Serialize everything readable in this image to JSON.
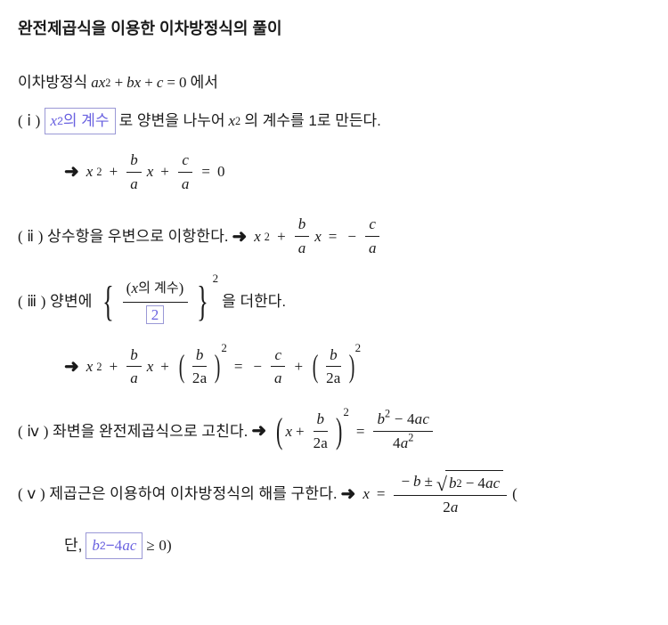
{
  "colors": {
    "text": "#1a1a1a",
    "box_border": "#9a98d6",
    "box_text": "#6a62e0",
    "background": "#ffffff"
  },
  "title": "완전제곱식을 이용한 이차방정식의 풀이",
  "intro": {
    "prefix": "이차방정식 ",
    "suffix": "에서",
    "ax2": "ax",
    "sq": "2",
    "plus1": " + ",
    "bx": "bx",
    "plus2": " + ",
    "c": "c",
    "eq": " = ",
    "zero": "0"
  },
  "step1": {
    "label": "( ⅰ ) ",
    "box_x": "x",
    "box_sq": "2",
    "box_rest": "의 계수",
    "mid": " 로 양변을 나누어 ",
    "x": "x",
    "sq": "2",
    "tail": "의 계수를 1로 만든다."
  },
  "eq1": {
    "x2_x": "x",
    "x2_sq": "2",
    "plus1": "+",
    "frac1_top": "b",
    "frac1_bot": "a",
    "frac1_after": "x",
    "plus2": "+",
    "frac2_top": "c",
    "frac2_bot": "a",
    "eq": "=",
    "zero": "0"
  },
  "step2": {
    "label": "( ⅱ ) 상수항을 우변으로 이항한다. ",
    "x2_x": "x",
    "x2_sq": "2",
    "plus": "+",
    "frac1_top": "b",
    "frac1_bot": "a",
    "frac1_after": "x",
    "eq": "=",
    "minus": "−",
    "frac2_top": "c",
    "frac2_bot": "a"
  },
  "step3": {
    "label": "( ⅲ ) 양변에 ",
    "brace_top_open": "(",
    "brace_top_x": "x",
    "brace_top_rest": "의 계수",
    "brace_top_close": ")",
    "brace_bot": "2",
    "outer_sq": "2",
    "tail": " 을 더한다."
  },
  "eq3": {
    "x2_x": "x",
    "x2_sq": "2",
    "plus1": "+",
    "f1_top": "b",
    "f1_bot": "a",
    "f1_after": "x",
    "plus2": "+",
    "p_f_top": "b",
    "p_f_bot": "2a",
    "p_sq": "2",
    "eq": "=",
    "minus": "−",
    "f2_top": "c",
    "f2_bot": "a",
    "plus3": "+",
    "p2_f_top": "b",
    "p2_f_bot": "2a",
    "p2_sq": "2"
  },
  "step4": {
    "label": "( ⅳ ) 좌변을 완전제곱식으로 고친다. ",
    "lp_x": "x",
    "lp_plus": "+",
    "lp_f_top": "b",
    "lp_f_bot": "2a",
    "lp_sq": "2",
    "eq": "=",
    "r_top_b": "b",
    "r_top_sq": "2",
    "r_top_minus": " − ",
    "r_top_4ac": "4ac",
    "r_bot_4a": "4a",
    "r_bot_sq": "2"
  },
  "step5": {
    "label": "( ⅴ ) 제곱근은 이용하여 이차방정식의 해를 구한다. ",
    "x": "x",
    "eq": "=",
    "top_minus": "−",
    "top_b": "b",
    "top_pm": " ± ",
    "rad_b": "b",
    "rad_sq": "2",
    "rad_minus": " − ",
    "rad_4ac": "4ac",
    "bot": "2a",
    "tail_open": " ( ",
    "cond_pre": "단, ",
    "box_b": "b",
    "box_sq": "2",
    "box_minus": " − ",
    "box_4ac": "4ac",
    "cond_post": " ≥ 0)"
  },
  "arrow": "➜"
}
